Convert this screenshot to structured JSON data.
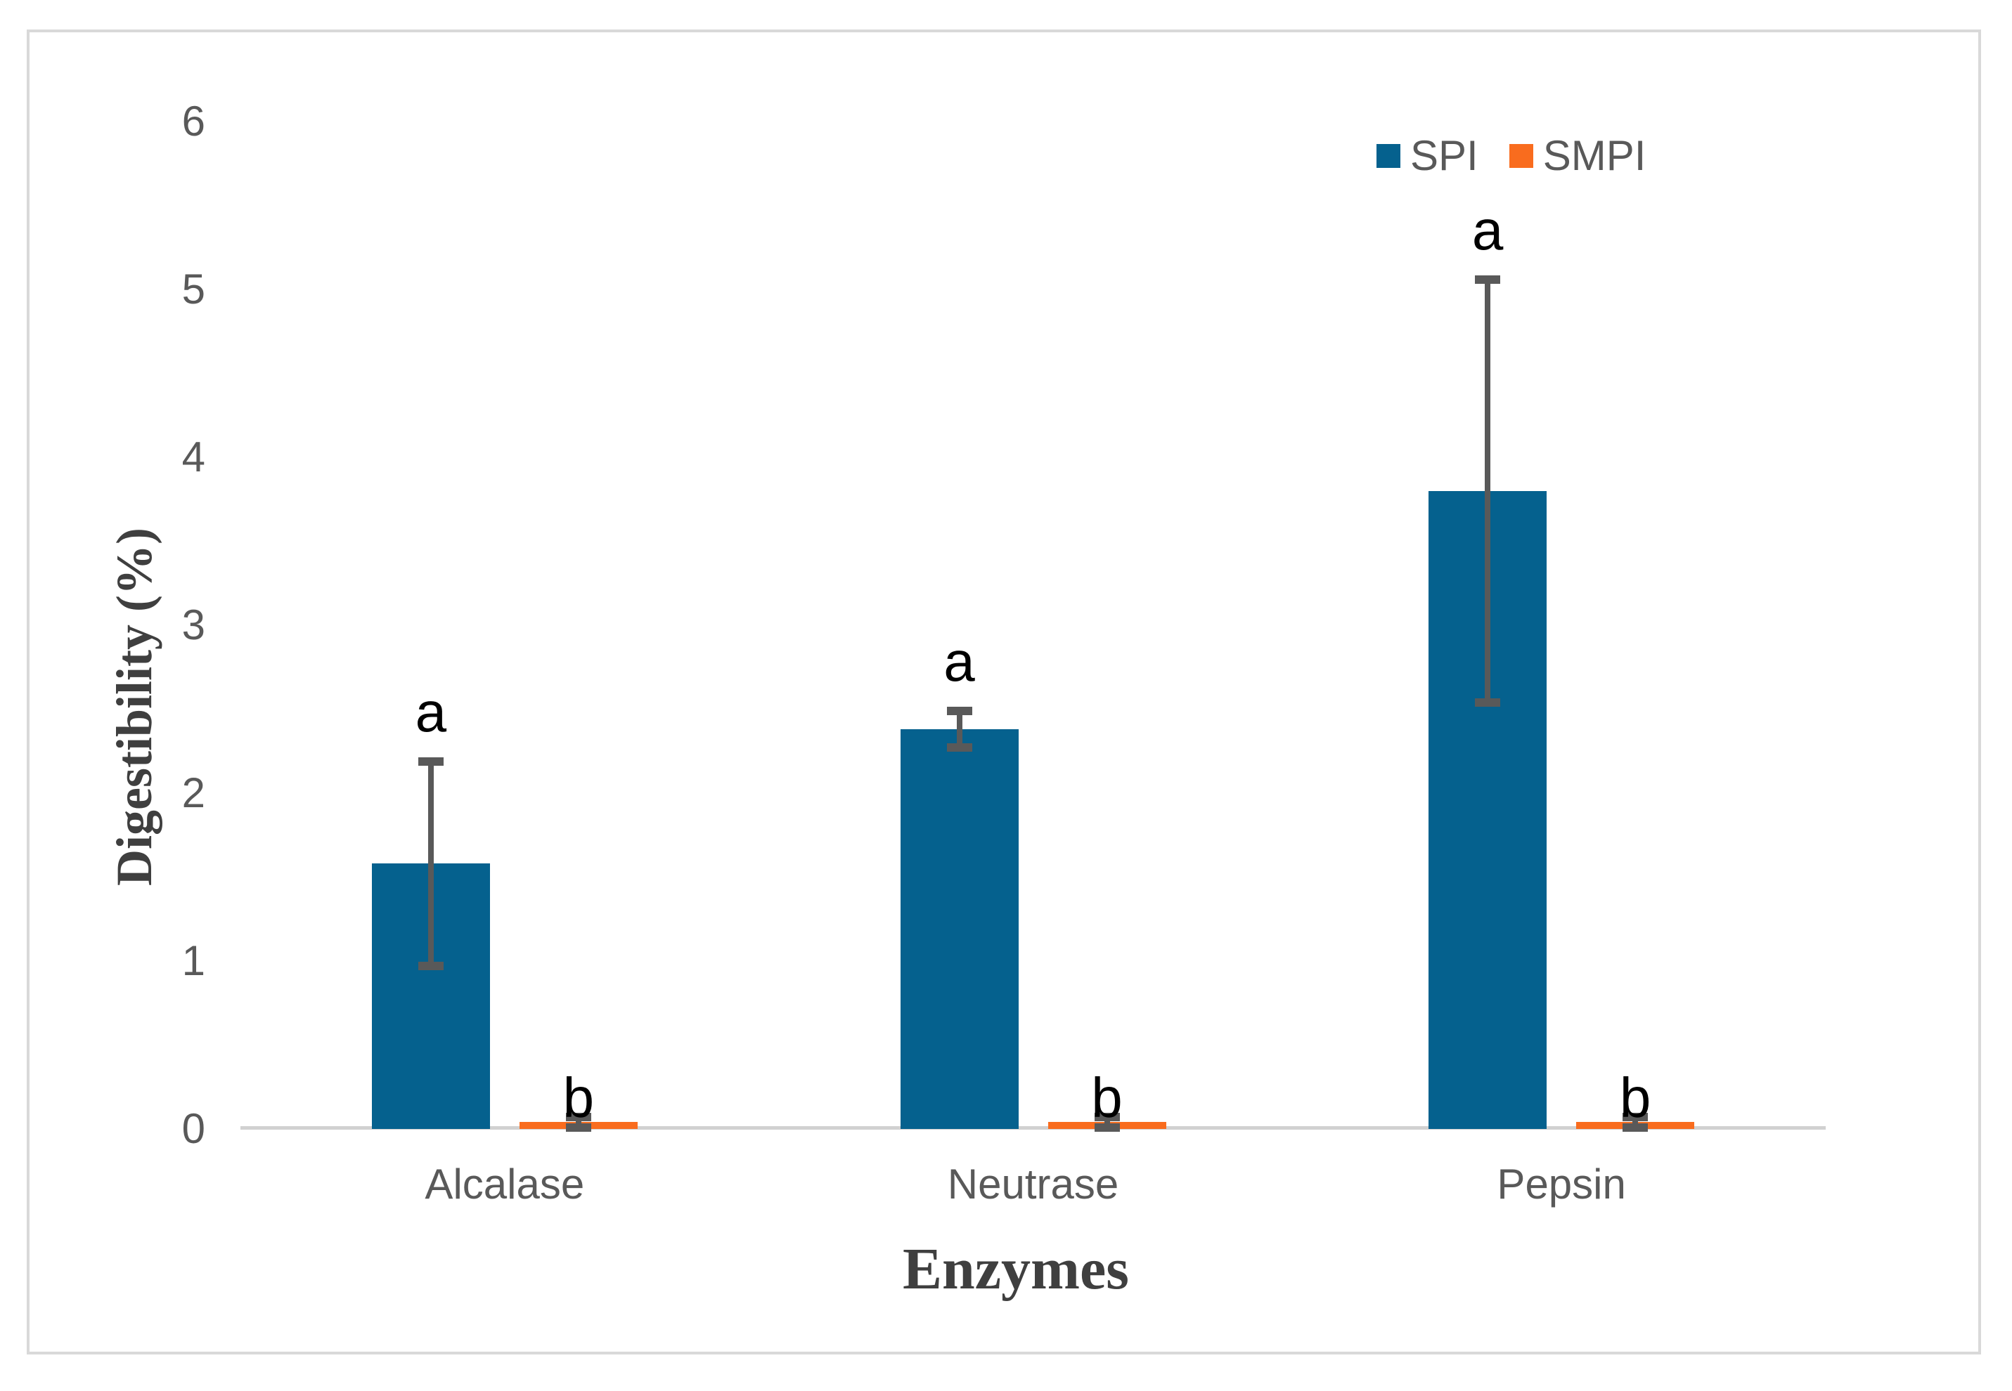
{
  "figure": {
    "border_color": "#D9D9D9",
    "background_color": "#FFFFFF"
  },
  "chart_data": {
    "type": "bar",
    "title": "",
    "xlabel": "Enzymes",
    "ylabel": "Digestibility (%)",
    "categories": [
      "Alcalase",
      "Neutrase",
      "Pepsin"
    ],
    "series": [
      {
        "name": "SPI",
        "color": "#05618E",
        "values": [
          1.58,
          2.38,
          3.8
        ],
        "error": [
          0.61,
          0.11,
          1.26
        ],
        "sig_labels": [
          "a",
          "a",
          "a"
        ]
      },
      {
        "name": "SMPI",
        "color": "#F96C1E",
        "values": [
          0.04,
          0.04,
          0.04
        ],
        "error": [
          0.03,
          0.03,
          0.03
        ],
        "sig_labels": [
          "b",
          "b",
          "b"
        ]
      }
    ],
    "ylim": [
      0,
      6
    ],
    "yticks": [
      0,
      1,
      2,
      3,
      4,
      5,
      6
    ],
    "grid": false,
    "legend_position": "top-right",
    "legend_entries": [
      "SPI",
      "SMPI"
    ],
    "error_bar_color": "#595959",
    "axis_line_color": "#D1D1D1",
    "tick_label_color": "#595959",
    "axis_title_color": "#3F3F3F",
    "sig_label_color": "#000000"
  }
}
